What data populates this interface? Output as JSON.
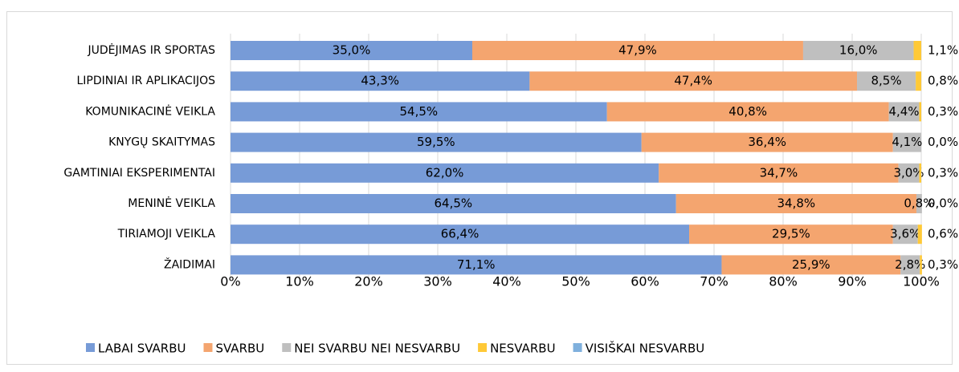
{
  "chart_data": {
    "type": "stacked_barh",
    "categories": [
      "JUDĖJIMAS IR SPORTAS",
      "LIPDINIAI IR APLIKACIJOS",
      "KOMUNIKACINĖ VEIKLA",
      "KNYGŲ SKAITYMAS",
      "GAMTINIAI EKSPERIMENTAI",
      "MENINĖ VEIKLA",
      "TIRIAMOJI VEIKLA",
      "ŽAIDIMAI"
    ],
    "series": [
      {
        "name": "LABAI SVARBU",
        "color": "#779bd7",
        "values": [
          35.0,
          43.3,
          54.5,
          59.5,
          62.0,
          64.5,
          66.4,
          71.1
        ],
        "value_labels": [
          "35,0%",
          "43,3%",
          "54,5%",
          "59,5%",
          "62,0%",
          "64,5%",
          "66,4%",
          "71,1%"
        ]
      },
      {
        "name": "SVARBU",
        "color": "#f4a56f",
        "values": [
          47.9,
          47.4,
          40.8,
          36.4,
          34.7,
          34.8,
          29.5,
          25.9
        ],
        "value_labels": [
          "47,9%",
          "47,4%",
          "40,8%",
          "36,4%",
          "34,7%",
          "34,8%",
          "29,5%",
          "25,9%"
        ]
      },
      {
        "name": "NEI SVARBU NEI NESVARBU",
        "color": "#bfbfbf",
        "values": [
          16.0,
          8.5,
          4.4,
          4.1,
          3.0,
          0.8,
          3.6,
          2.8
        ],
        "value_labels": [
          "16,0%",
          "8,5%",
          "4,4%",
          "4,1%",
          "3,0%",
          "0,8%",
          "3,6%",
          "2,8%"
        ]
      },
      {
        "name": "NESVARBU",
        "color": "#ffc937",
        "values": [
          1.1,
          0.8,
          0.3,
          0.0,
          0.3,
          0.0,
          0.6,
          0.3
        ],
        "value_labels": [
          "1,1%",
          "0,8%",
          "0,3%",
          "0,0%",
          "0,3%",
          "0,0%",
          "0,6%",
          "0,3%"
        ]
      },
      {
        "name": "VISIŠKAI NESVARBU",
        "color": "#7fb0dd",
        "values": [
          0,
          0,
          0,
          0,
          0,
          0,
          0,
          0
        ]
      }
    ],
    "xlim": [
      0,
      100
    ],
    "xticks": [
      {
        "value": 0,
        "label": "0%"
      },
      {
        "value": 10,
        "label": "10%"
      },
      {
        "value": 20,
        "label": "20%"
      },
      {
        "value": 30,
        "label": "30%"
      },
      {
        "value": 40,
        "label": "40%"
      },
      {
        "value": 50,
        "label": "50%"
      },
      {
        "value": 60,
        "label": "60%"
      },
      {
        "value": 70,
        "label": "70%"
      },
      {
        "value": 80,
        "label": "80%"
      },
      {
        "value": 90,
        "label": "90%"
      },
      {
        "value": 100,
        "label": "100%"
      }
    ],
    "grid": true,
    "legend": "bottom"
  }
}
